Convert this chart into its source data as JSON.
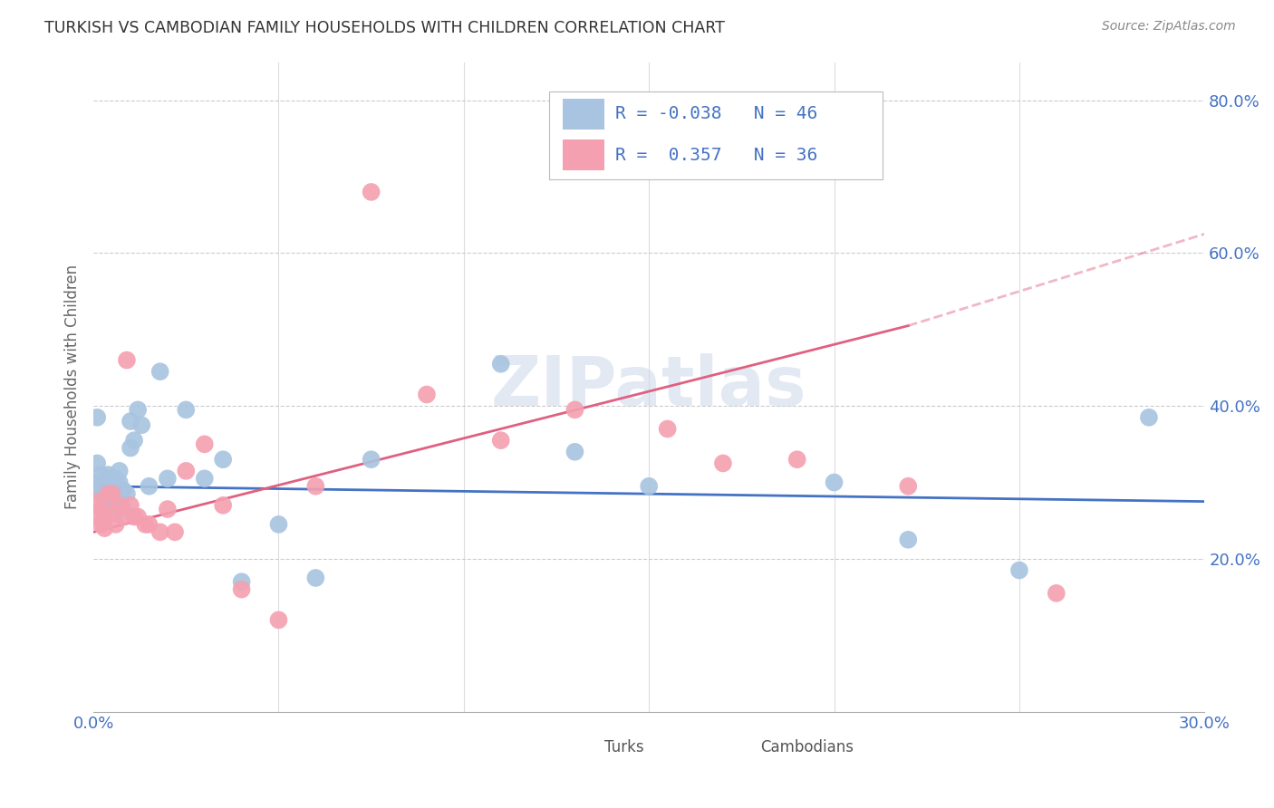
{
  "title": "TURKISH VS CAMBODIAN FAMILY HOUSEHOLDS WITH CHILDREN CORRELATION CHART",
  "source": "Source: ZipAtlas.com",
  "ylabel": "Family Households with Children",
  "xlim": [
    0.0,
    0.3
  ],
  "ylim": [
    0.0,
    0.85
  ],
  "xtick_positions": [
    0.0,
    0.05,
    0.1,
    0.15,
    0.2,
    0.25,
    0.3
  ],
  "xticklabels": [
    "0.0%",
    "",
    "",
    "",
    "",
    "",
    "30.0%"
  ],
  "ytick_positions": [
    0.2,
    0.4,
    0.6,
    0.8
  ],
  "yticklabels": [
    "20.0%",
    "40.0%",
    "60.0%",
    "80.0%"
  ],
  "turks_color": "#a8c4e0",
  "cambodians_color": "#f4a0b0",
  "turks_line_color": "#4472c4",
  "cambodians_line_color": "#e06080",
  "turks_R": -0.038,
  "turks_N": 46,
  "cambodians_R": 0.357,
  "cambodians_N": 36,
  "watermark": "ZIPatlas",
  "turks_line": [
    0.0,
    0.295,
    0.3,
    0.275
  ],
  "cambodians_line_solid": [
    0.0,
    0.235,
    0.22,
    0.505
  ],
  "cambodians_line_dashed": [
    0.22,
    0.505,
    0.3,
    0.625
  ],
  "turks_x": [
    0.001,
    0.001,
    0.001,
    0.002,
    0.002,
    0.002,
    0.003,
    0.003,
    0.003,
    0.003,
    0.004,
    0.004,
    0.004,
    0.005,
    0.005,
    0.005,
    0.006,
    0.006,
    0.006,
    0.007,
    0.007,
    0.008,
    0.008,
    0.009,
    0.01,
    0.01,
    0.011,
    0.012,
    0.013,
    0.015,
    0.018,
    0.02,
    0.025,
    0.03,
    0.035,
    0.04,
    0.05,
    0.06,
    0.075,
    0.11,
    0.13,
    0.15,
    0.2,
    0.22,
    0.25,
    0.285
  ],
  "turks_y": [
    0.3,
    0.385,
    0.325,
    0.295,
    0.285,
    0.31,
    0.295,
    0.285,
    0.275,
    0.305,
    0.295,
    0.31,
    0.27,
    0.305,
    0.285,
    0.298,
    0.295,
    0.305,
    0.27,
    0.315,
    0.3,
    0.29,
    0.265,
    0.285,
    0.345,
    0.38,
    0.355,
    0.395,
    0.375,
    0.295,
    0.445,
    0.305,
    0.395,
    0.305,
    0.33,
    0.17,
    0.245,
    0.175,
    0.33,
    0.455,
    0.34,
    0.295,
    0.3,
    0.225,
    0.185,
    0.385
  ],
  "cambodians_x": [
    0.001,
    0.001,
    0.002,
    0.002,
    0.003,
    0.003,
    0.004,
    0.005,
    0.005,
    0.006,
    0.007,
    0.008,
    0.009,
    0.01,
    0.011,
    0.012,
    0.014,
    0.015,
    0.018,
    0.02,
    0.022,
    0.025,
    0.03,
    0.035,
    0.04,
    0.05,
    0.06,
    0.075,
    0.09,
    0.11,
    0.13,
    0.155,
    0.17,
    0.19,
    0.22,
    0.26
  ],
  "cambodians_y": [
    0.275,
    0.255,
    0.265,
    0.245,
    0.255,
    0.24,
    0.285,
    0.285,
    0.26,
    0.245,
    0.27,
    0.255,
    0.46,
    0.27,
    0.255,
    0.255,
    0.245,
    0.245,
    0.235,
    0.265,
    0.235,
    0.315,
    0.35,
    0.27,
    0.16,
    0.12,
    0.295,
    0.68,
    0.415,
    0.355,
    0.395,
    0.37,
    0.325,
    0.33,
    0.295,
    0.155
  ]
}
